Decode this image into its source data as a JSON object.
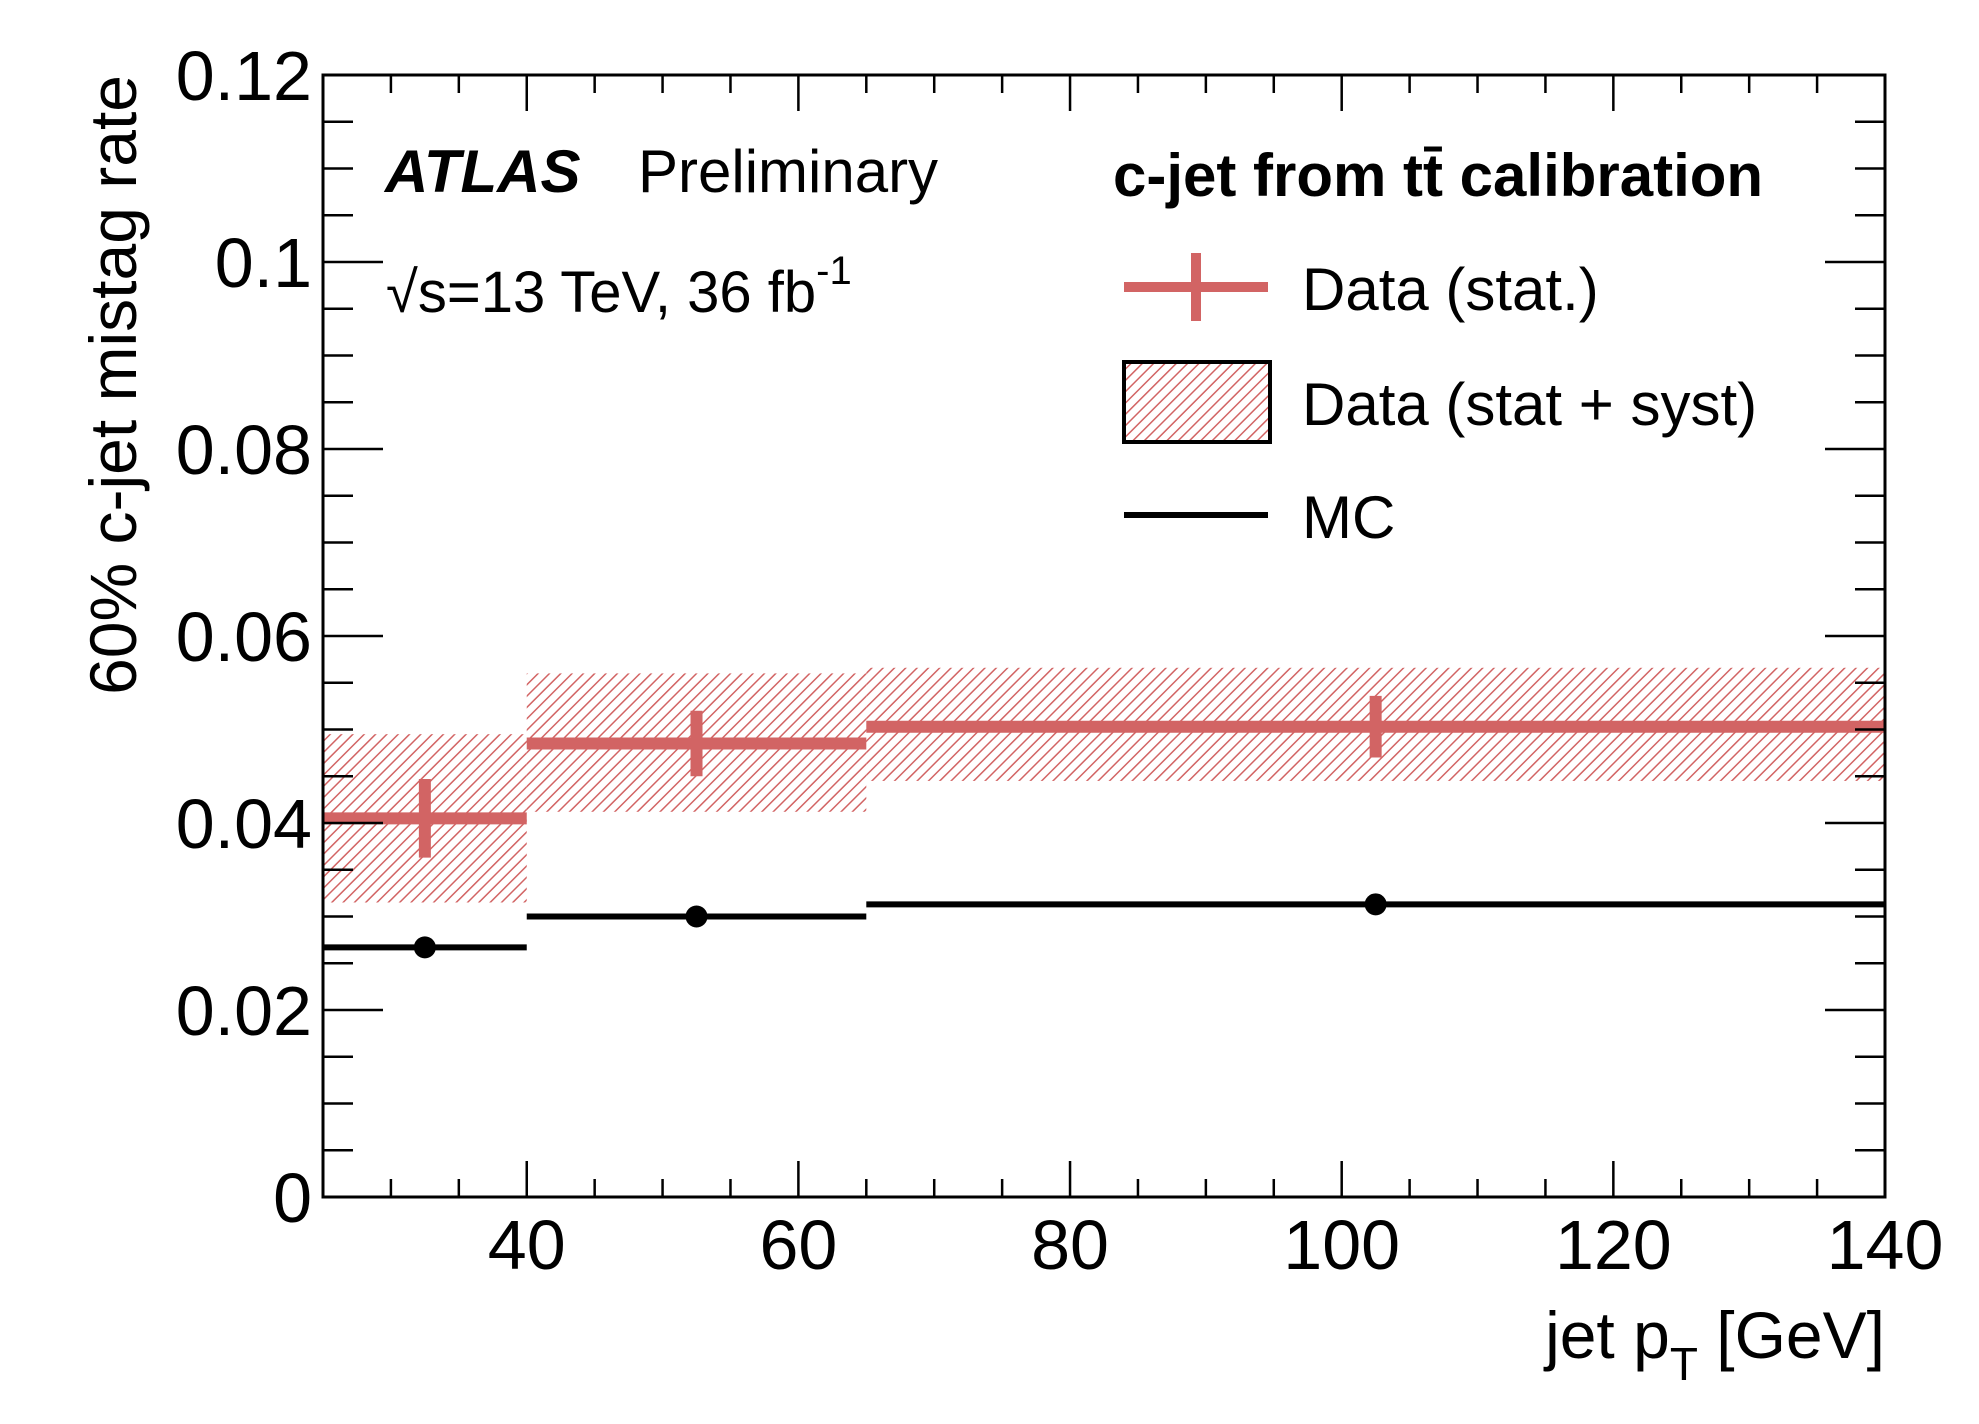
{
  "chart_data": {
    "type": "scatter",
    "title": "",
    "xlabel": "jet p",
    "xlabel_sub": "T",
    "xlabel_unit": " [GeV]",
    "ylabel": "60% c-jet mistag rate",
    "xlim": [
      25,
      140
    ],
    "ylim": [
      0,
      0.12
    ],
    "x_ticks": [
      {
        "value": 40,
        "label": "40"
      },
      {
        "value": 60,
        "label": "60"
      },
      {
        "value": 80,
        "label": "80"
      },
      {
        "value": 100,
        "label": "100"
      },
      {
        "value": 120,
        "label": "120"
      },
      {
        "value": 140,
        "label": "140"
      }
    ],
    "y_ticks": [
      {
        "value": 0,
        "label": "0"
      },
      {
        "value": 0.02,
        "label": "0.02"
      },
      {
        "value": 0.04,
        "label": "0.04"
      },
      {
        "value": 0.06,
        "label": "0.06"
      },
      {
        "value": 0.08,
        "label": "0.08"
      },
      {
        "value": 0.1,
        "label": "0.1"
      },
      {
        "value": 0.12,
        "label": "0.12"
      }
    ],
    "grid": false,
    "legend_position": "top-right",
    "annotations": {
      "atlas": "ATLAS",
      "preliminary": "Preliminary",
      "energy_prefix": "√s=13 TeV, 36 fb",
      "energy_sup": "-1",
      "calibration": "c-jet from tt̄ calibration"
    },
    "series": [
      {
        "name": "Data (stat.)",
        "style": "errorbar",
        "color": "#d26464",
        "bins": [
          {
            "x_low": 25,
            "x_high": 40,
            "x": 32.5,
            "y": 0.0405,
            "stat_err": 0.0042
          },
          {
            "x_low": 40,
            "x_high": 65,
            "x": 52.5,
            "y": 0.0485,
            "stat_err": 0.0035
          },
          {
            "x_low": 65,
            "x_high": 140,
            "x": 102.5,
            "y": 0.0503,
            "stat_err": 0.0033
          }
        ]
      },
      {
        "name": "Data (stat + syst)",
        "style": "hatched-band",
        "color": "#d26464",
        "bins": [
          {
            "x_low": 25,
            "x_high": 40,
            "y_low": 0.0315,
            "y_high": 0.0495
          },
          {
            "x_low": 40,
            "x_high": 65,
            "y_low": 0.0412,
            "y_high": 0.056
          },
          {
            "x_low": 65,
            "x_high": 140,
            "y_low": 0.0445,
            "y_high": 0.0566
          }
        ]
      },
      {
        "name": "MC",
        "style": "line-marker",
        "color": "#000000",
        "bins": [
          {
            "x_low": 25,
            "x_high": 40,
            "x": 32.5,
            "y": 0.0267
          },
          {
            "x_low": 40,
            "x_high": 65,
            "x": 52.5,
            "y": 0.03
          },
          {
            "x_low": 65,
            "x_high": 140,
            "x": 102.5,
            "y": 0.0313
          }
        ]
      }
    ]
  }
}
